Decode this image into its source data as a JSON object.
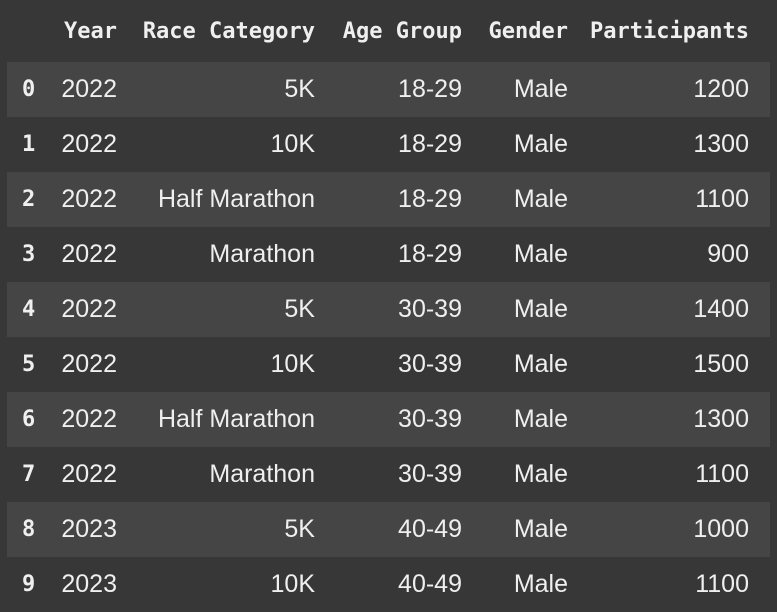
{
  "chart_data": {
    "type": "table",
    "title": "",
    "columns": [
      "Year",
      "Race Category",
      "Age Group",
      "Gender",
      "Participants"
    ],
    "index_values": [
      "0",
      "1",
      "2",
      "3",
      "4",
      "5",
      "6",
      "7",
      "8",
      "9"
    ],
    "rows": [
      [
        2022,
        "5K",
        "18-29",
        "Male",
        1200
      ],
      [
        2022,
        "10K",
        "18-29",
        "Male",
        1300
      ],
      [
        2022,
        "Half Marathon",
        "18-29",
        "Male",
        1100
      ],
      [
        2022,
        "Marathon",
        "18-29",
        "Male",
        900
      ],
      [
        2022,
        "5K",
        "30-39",
        "Male",
        1400
      ],
      [
        2022,
        "10K",
        "30-39",
        "Male",
        1500
      ],
      [
        2022,
        "Half Marathon",
        "30-39",
        "Male",
        1300
      ],
      [
        2022,
        "Marathon",
        "30-39",
        "Male",
        1100
      ],
      [
        2023,
        "5K",
        "40-49",
        "Male",
        1000
      ],
      [
        2023,
        "10K",
        "40-49",
        "Male",
        1100
      ]
    ],
    "layout": {
      "striped_rows": "even indices highlighted",
      "legend": "none",
      "grid": "none"
    }
  },
  "colors": {
    "page_background": "#373737",
    "row_stripe": "#454545",
    "text": "#efefef"
  }
}
